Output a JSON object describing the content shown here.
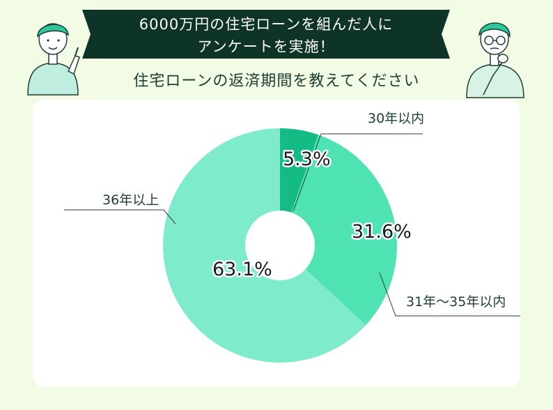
{
  "banner": {
    "line1": "6000万円の住宅ローンを組んだ人に",
    "line2": "アンケートを実施！"
  },
  "question": "住宅ローンの返済期間を教えてください",
  "colors": {
    "background": "#f2fbe3",
    "banner": "#0e3327",
    "card": "#ffffff",
    "slice_30": "#14bb85",
    "slice_31_35": "#4fe2b3",
    "slice_36": "#7eeccc",
    "leader": "#2a3a35"
  },
  "icons": [
    "person-pointing-icon",
    "person-thinking-icon"
  ],
  "chart_data": {
    "type": "pie",
    "donut": true,
    "title": "住宅ローンの返済期間を教えてください",
    "slices": [
      {
        "label": "30年以内",
        "value": 5.3,
        "value_label": "5.3%",
        "color": "#14bb85"
      },
      {
        "label": "31年〜35年以内",
        "value": 31.6,
        "value_label": "31.6%",
        "color": "#4fe2b3"
      },
      {
        "label": "36年以上",
        "value": 63.1,
        "value_label": "63.1%",
        "color": "#7eeccc"
      }
    ],
    "start_angle_deg": 0,
    "direction": "clockwise"
  }
}
